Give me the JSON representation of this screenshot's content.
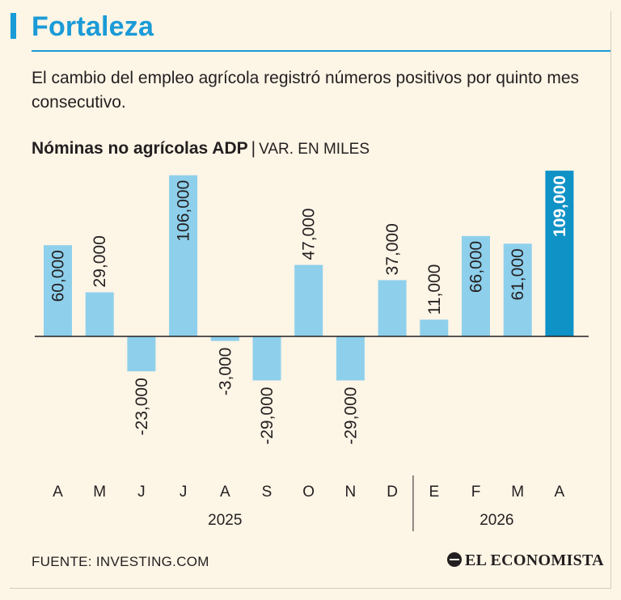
{
  "header": {
    "title": "Fortaleza",
    "subtitle": "El cambio del empleo agrícola registró números positivos por quinto mes consecutivo."
  },
  "chart_head": {
    "name": "Nóminas no agrícolas ADP",
    "separator": "|",
    "unit": "VAR. EN MILES"
  },
  "chart_data": {
    "type": "bar",
    "categories": [
      "A",
      "M",
      "J",
      "J",
      "A",
      "S",
      "O",
      "N",
      "D",
      "E",
      "F",
      "M",
      "A"
    ],
    "values": [
      60000,
      29000,
      -23000,
      106000,
      -3000,
      -29000,
      47000,
      -29000,
      37000,
      11000,
      66000,
      61000,
      109000
    ],
    "labels": [
      "60,000",
      "29,000",
      "-23,000",
      "106,000",
      "-3,000",
      "-29,000",
      "47,000",
      "-29,000",
      "37,000",
      "11,000",
      "66,000",
      "61,000",
      "109,000"
    ],
    "highlight_index": 12,
    "year_groups": [
      {
        "label": "2025",
        "start": 0,
        "end": 8
      },
      {
        "label": "2026",
        "start": 9,
        "end": 12
      }
    ],
    "colors": {
      "bar": "#8ed0ec",
      "highlight": "#0f92c6",
      "axis": "#231f20"
    },
    "grid": false,
    "legend": "none"
  },
  "footer": {
    "source": "FUENTE: INVESTING.COM",
    "brand": "EL ECONOMISTA"
  }
}
